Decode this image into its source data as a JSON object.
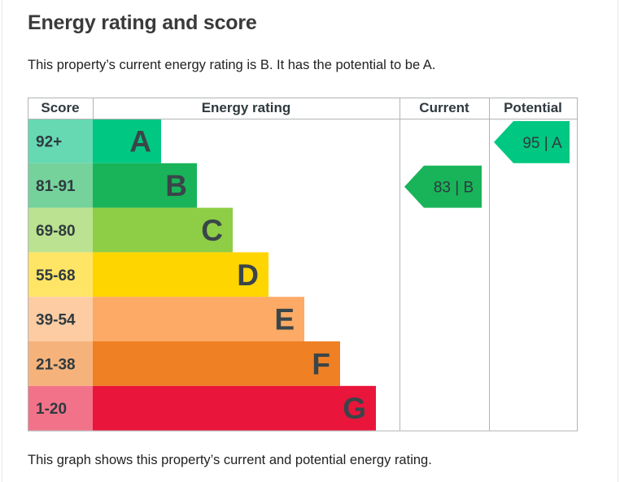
{
  "heading": "Energy rating and score",
  "summary": "This property’s current energy rating is B. It has the potential to be A.",
  "caption": "This graph shows this property’s current and potential energy rating.",
  "chart_data": {
    "type": "table",
    "title": "Energy rating and score",
    "columns": [
      "Score",
      "Energy rating",
      "Current",
      "Potential"
    ],
    "bands": [
      {
        "score": "92+",
        "rating": "A",
        "color": "#00c781",
        "score_bg": "#66d9b3"
      },
      {
        "score": "81-91",
        "rating": "B",
        "color": "#19b459",
        "score_bg": "#75d29b"
      },
      {
        "score": "69-80",
        "rating": "C",
        "color": "#8dce46",
        "score_bg": "#bbe290"
      },
      {
        "score": "55-68",
        "rating": "D",
        "color": "#ffd500",
        "score_bg": "#ffe566"
      },
      {
        "score": "39-54",
        "rating": "E",
        "color": "#fcaa65",
        "score_bg": "#fdcca3"
      },
      {
        "score": "21-38",
        "rating": "F",
        "color": "#ef8023",
        "score_bg": "#f5b37b"
      },
      {
        "score": "1-20",
        "rating": "G",
        "color": "#e9153b",
        "score_bg": "#f27389"
      }
    ],
    "current": {
      "score": 83,
      "rating": "B",
      "label": "83 | B",
      "color": "#19b459"
    },
    "potential": {
      "score": 95,
      "rating": "A",
      "label": "95 | A",
      "color": "#00c781"
    }
  }
}
